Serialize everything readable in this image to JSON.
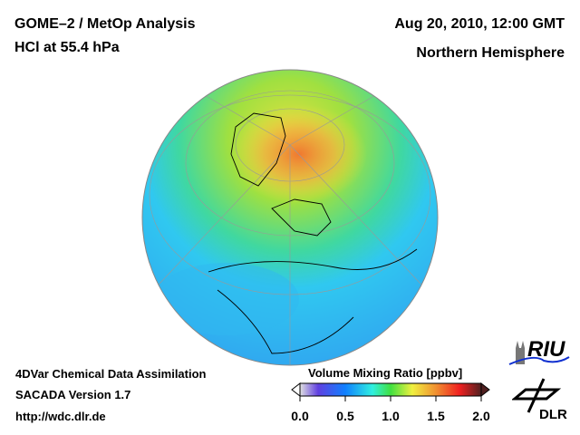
{
  "header": {
    "title": "GOME–2 / MetOp Analysis",
    "subtitle": "HCl at 55.4 hPa",
    "date": "Aug 20, 2010, 12:00 GMT",
    "region": "Northern Hemisphere"
  },
  "footer": {
    "line1": "4DVar Chemical Data Assimilation",
    "line2": "SACADA Version 1.7",
    "url": "http://wdc.dlr.de"
  },
  "colorbar": {
    "title": "Volume Mixing Ratio [ppbv]",
    "ticks": [
      "0.0",
      "0.5",
      "1.0",
      "1.5",
      "2.0"
    ],
    "range": [
      0,
      2
    ],
    "colors": [
      "#e0e0e0",
      "#6040e0",
      "#1080ff",
      "#30f0e0",
      "#40e040",
      "#f0f040",
      "#f09030",
      "#f02020",
      "#502020"
    ]
  },
  "logos": {
    "riu": "RIU",
    "dlr": "DLR"
  }
}
